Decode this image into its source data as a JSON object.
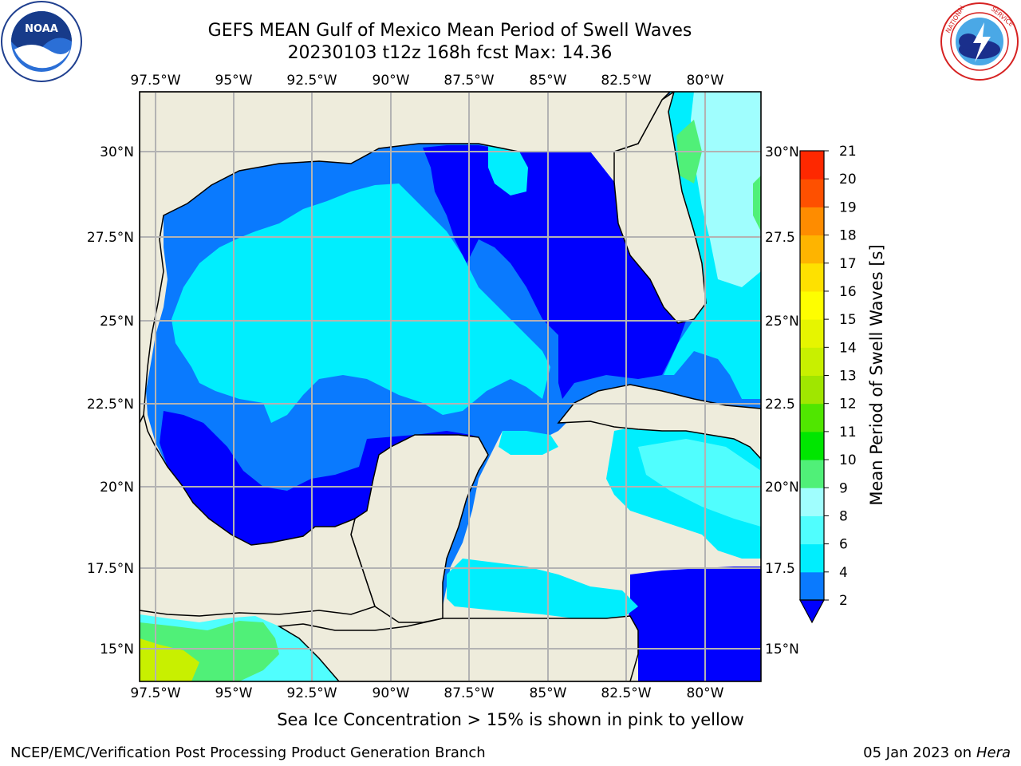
{
  "header": {
    "title_line1": "GEFS MEAN Gulf of Mexico Mean Period of Swell Waves",
    "title_line2": "20230103 t12z 168h fcst   Max: 14.36"
  },
  "logos": {
    "noaa": {
      "icon": "noaa-logo",
      "text": "NOAA",
      "ring_text": "NATIONAL OCEANIC AND ATMOSPHERIC ADMINISTRATION · U.S. DEPARTMENT OF COMMERCE"
    },
    "nws": {
      "icon": "nws-logo",
      "ring_text": "NATIONAL WEATHER SERVICE"
    }
  },
  "map": {
    "lon_ticks_top": [
      "97.5°W",
      "95°W",
      "92.5°W",
      "90°W",
      "87.5°W",
      "85°W",
      "82.5°W",
      "80°W"
    ],
    "lon_ticks_bottom": [
      "97.5°W",
      "95°W",
      "92.5°W",
      "90°W",
      "87.5°W",
      "85°W",
      "82.5°W",
      "80°W"
    ],
    "lat_ticks_left": [
      "30°N",
      "27.5°N",
      "25°N",
      "22.5°N",
      "20°N",
      "17.5°N",
      "15°N"
    ],
    "lat_ticks_right": [
      "30°N",
      "27.5",
      "25°N",
      "22.5",
      "20°N",
      "17.5",
      "15°N"
    ],
    "extent": {
      "lon": [
        -98,
        -78.2
      ],
      "lat": [
        14,
        31.6
      ]
    },
    "colors": {
      "land": "#eeecdc",
      "grid": "#b3b3b3",
      "coast": "#000000"
    }
  },
  "colorbar": {
    "label": "Mean Period of Swell Waves [s]",
    "levels": [
      "2",
      "4",
      "6",
      "8",
      "9",
      "10",
      "11",
      "12",
      "13",
      "14",
      "15",
      "16",
      "17",
      "18",
      "19",
      "20",
      "21"
    ],
    "colors": [
      "#0a7afe",
      "#00eefe",
      "#50fefe",
      "#a0fefe",
      "#50f078",
      "#00e600",
      "#50e600",
      "#a0e600",
      "#c8f000",
      "#e6f500",
      "#fefe00",
      "#fee100",
      "#feb400",
      "#fe8c00",
      "#fe5000",
      "#fe2800",
      "#fe0000"
    ],
    "under_color": "#0000fe"
  },
  "note": "Sea Ice Concentration > 15% is shown in pink to yellow",
  "footer": {
    "left": "NCEP/EMC/Verification Post Processing Product Generation Branch",
    "right_prefix": "05 Jan 2023 on ",
    "right_machine": "Hera"
  }
}
